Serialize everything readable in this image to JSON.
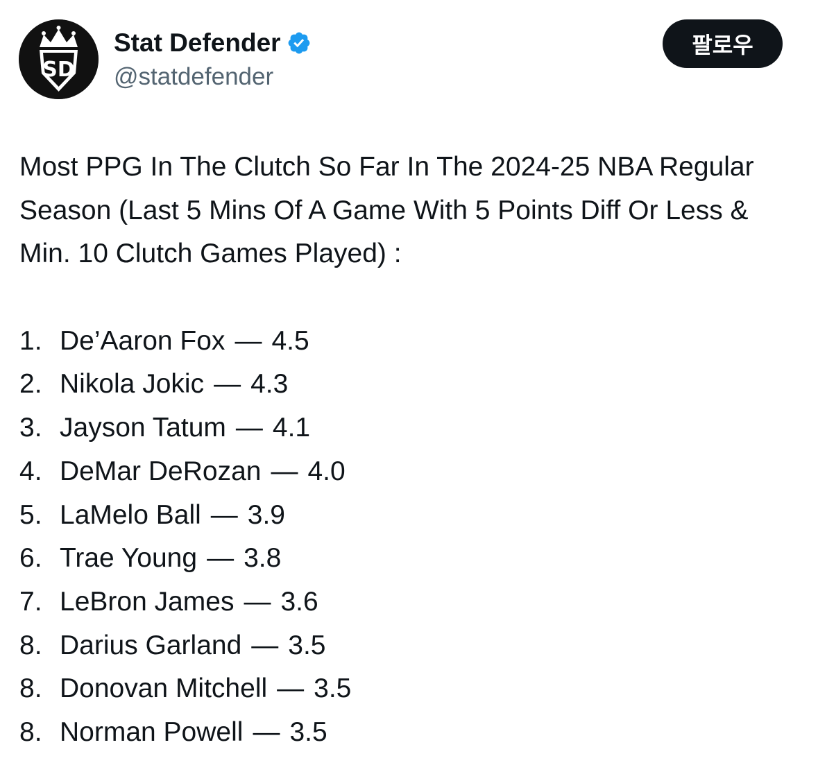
{
  "account": {
    "display_name": "Stat Defender",
    "handle": "@statdefender",
    "verified": true,
    "avatar_icon": "crown-sd-logo",
    "avatar_text": "SD"
  },
  "follow_button": {
    "label": "팔로우"
  },
  "tweet": {
    "text": "Most PPG In The Clutch So Far In The 2024-25 NBA Regular Season (Last 5 Mins Of A Game With 5 Points Diff Or Less & Min. 10 Clutch Games Played) :",
    "rankings": [
      {
        "rank": "1.",
        "player": "De’Aaron Fox",
        "ppg": "4.5"
      },
      {
        "rank": "2.",
        "player": "Nikola Jokic",
        "ppg": "4.3"
      },
      {
        "rank": "3.",
        "player": "Jayson Tatum",
        "ppg": "4.1"
      },
      {
        "rank": "4.",
        "player": "DeMar DeRozan",
        "ppg": "4.0"
      },
      {
        "rank": "5.",
        "player": "LaMelo Ball",
        "ppg": "3.9"
      },
      {
        "rank": "6.",
        "player": "Trae Young",
        "ppg": "3.8"
      },
      {
        "rank": "7.",
        "player": "LeBron James",
        "ppg": "3.6"
      },
      {
        "rank": "8.",
        "player": "Darius Garland",
        "ppg": "3.5"
      },
      {
        "rank": "8.",
        "player": "Donovan Mitchell",
        "ppg": "3.5"
      },
      {
        "rank": "8.",
        "player": "Norman Powell",
        "ppg": "3.5"
      }
    ],
    "separator": "—"
  },
  "colors": {
    "text_primary": "#0f1419",
    "text_secondary": "#536471",
    "verified_blue": "#1d9bf0",
    "button_bg": "#0f1419",
    "button_text": "#ffffff"
  }
}
